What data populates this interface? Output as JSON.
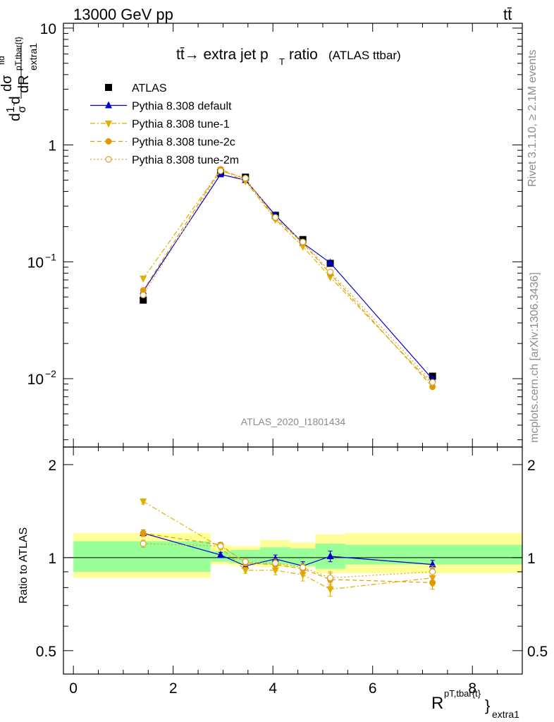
{
  "header": {
    "beam_label": "13000 GeV pp",
    "process_label": "tt̄",
    "plot_title": "tt̄→ extra jet p",
    "plot_title_sub": "T",
    "plot_title_tail": "ratio",
    "plot_title_paren": "(ATLAS ttbar)",
    "analysis_id": "ATLAS_2020_I1801434",
    "rivet_label": "Rivet 3.1.10, ≥ 2.1M events",
    "source_label": "mcplots.cern.ch [arXiv:1306.3436]"
  },
  "axes": {
    "main_ylabel_parts": [
      "d",
      "1",
      "σ",
      "d",
      "dσ",
      "fid",
      "dR",
      "pT,tbar{t}",
      "extra1"
    ],
    "ratio_ylabel": "Ratio to ATLAS",
    "xlabel_main": "R",
    "xlabel_sup": "pT,tbar{t}",
    "xlabel_sub": "extra1",
    "main_yticks": [
      {
        "value": 10,
        "base": "10",
        "exp": ""
      },
      {
        "value": 1,
        "base": "1",
        "exp": ""
      },
      {
        "value": 0.1,
        "base": "10",
        "exp": "−1"
      },
      {
        "value": 0.01,
        "base": "10",
        "exp": "−2"
      }
    ],
    "ratio_yticks": [
      "2",
      "1",
      "0.5"
    ],
    "xticks": [
      "0",
      "2",
      "4",
      "6",
      "8"
    ]
  },
  "chart_data": {
    "type": "line",
    "title": "tt̄→ extra jet pT ratio (ATLAS ttbar)",
    "xlim": [
      -0.2,
      9.0
    ],
    "ylim_main": [
      0.0026,
      11
    ],
    "yscale_main": "log",
    "ylim_ratio": [
      0.42,
      2.28
    ],
    "yscale_ratio": "log",
    "legend_position": "top-left",
    "x": [
      1.4,
      2.95,
      3.45,
      4.05,
      4.6,
      5.15,
      7.2
    ],
    "bin_edges": [
      0,
      2.75,
      3.15,
      3.75,
      4.35,
      4.85,
      5.45,
      9.0
    ],
    "ratio_band_green": [
      [
        0.9,
        1.13
      ],
      [
        0.97,
        1.05
      ],
      [
        0.96,
        1.06
      ],
      [
        0.95,
        1.08
      ],
      [
        0.94,
        1.07
      ],
      [
        0.92,
        1.11
      ],
      [
        0.95,
        1.1
      ]
    ],
    "ratio_band_yellow": [
      [
        0.86,
        1.2
      ],
      [
        0.95,
        1.1
      ],
      [
        0.94,
        1.09
      ],
      [
        0.93,
        1.14
      ],
      [
        0.93,
        1.12
      ],
      [
        0.89,
        1.19
      ],
      [
        0.89,
        1.2
      ]
    ],
    "series": [
      {
        "name": "ATLAS",
        "color": "#000000",
        "marker": "square",
        "line": "none",
        "values": [
          0.047,
          0.58,
          0.53,
          0.25,
          0.155,
          0.097,
          0.0105
        ],
        "ratio": [
          1,
          1,
          1,
          1,
          1,
          1,
          1
        ],
        "ratio_err": [
          0,
          0,
          0,
          0,
          0,
          0,
          0
        ]
      },
      {
        "name": "Pythia 8.308 default",
        "color": "#0000cc",
        "marker": "triangle-up",
        "line": "solid",
        "values": [
          0.056,
          0.56,
          0.5,
          0.25,
          0.145,
          0.098,
          0.0099
        ],
        "ratio": [
          1.2,
          1.02,
          0.94,
          0.99,
          0.94,
          1.01,
          0.95
        ],
        "ratio_err": [
          0.03,
          0.02,
          0.02,
          0.03,
          0.03,
          0.04,
          0.03
        ]
      },
      {
        "name": "Pythia 8.308 tune-1",
        "color": "#e0b000",
        "marker": "triangle-down",
        "line": "dashdot",
        "values": [
          0.072,
          0.61,
          0.49,
          0.23,
          0.135,
          0.074,
          0.0089
        ],
        "ratio": [
          1.52,
          1.08,
          0.91,
          0.91,
          0.88,
          0.79,
          0.86
        ],
        "ratio_err": [
          0.03,
          0.02,
          0.02,
          0.03,
          0.04,
          0.04,
          0.05
        ]
      },
      {
        "name": "Pythia 8.308 tune-2c",
        "color": "#e09a00",
        "marker": "circle",
        "line": "dashed",
        "values": [
          0.057,
          0.62,
          0.51,
          0.235,
          0.145,
          0.079,
          0.0085
        ],
        "ratio": [
          1.2,
          1.1,
          0.96,
          0.95,
          0.92,
          0.85,
          0.83
        ],
        "ratio_err": [
          0.03,
          0.02,
          0.02,
          0.03,
          0.03,
          0.04,
          0.04
        ]
      },
      {
        "name": "Pythia 8.308 tune-2m",
        "color": "#e0a030",
        "marker": "circle-open",
        "line": "dotted",
        "values": [
          0.052,
          0.6,
          0.52,
          0.24,
          0.148,
          0.082,
          0.0093
        ],
        "ratio": [
          1.11,
          1.09,
          0.97,
          0.96,
          0.93,
          0.86,
          0.9
        ],
        "ratio_err": [
          0.03,
          0.02,
          0.02,
          0.03,
          0.03,
          0.04,
          0.04
        ]
      }
    ]
  }
}
